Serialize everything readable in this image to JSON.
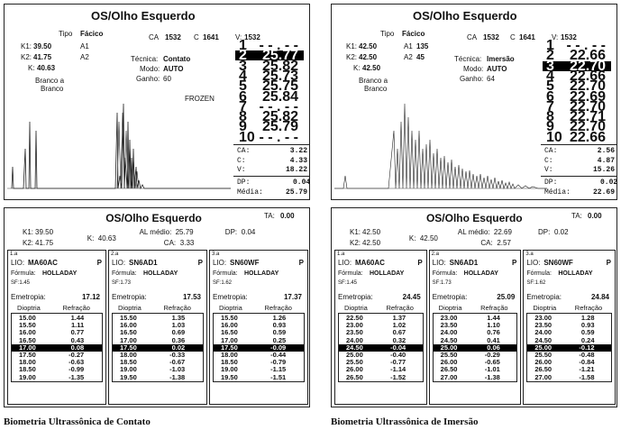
{
  "left": {
    "title": "OS/Olho Esquerdo",
    "tipo_label": "Tipo",
    "tipo": "Fácico",
    "ca_label": "CA",
    "ca": "1532",
    "c_label": "C",
    "c": "1641",
    "v_label": "V:",
    "v": "1532",
    "k1_label": "K1:",
    "k1": "39.50",
    "a1_label": "A1",
    "a1": "",
    "k2_label": "K2:",
    "k2": "41.75",
    "a2_label": "A2",
    "a2": "",
    "k_label": "K:",
    "k": "40.63",
    "tecnica_label": "Técnica:",
    "tecnica": "Contato",
    "modo_label": "Modo:",
    "modo": "AUTO",
    "ganho_label": "Ganho:",
    "ganho": "60",
    "branco1": "Branco a",
    "branco2": "Branco",
    "frozen": "FROZEN",
    "measurements": [
      [
        "1",
        "- - . - -"
      ],
      [
        "2",
        "25.77"
      ],
      [
        "3",
        "25.82"
      ],
      [
        "4",
        "25.73"
      ],
      [
        "5",
        "25.75"
      ],
      [
        "6",
        "25.84"
      ],
      [
        "7",
        "- - . - -"
      ],
      [
        "8",
        "25.82"
      ],
      [
        "9",
        "25.79"
      ],
      [
        "10",
        "- - . - -"
      ]
    ],
    "selected_index": 1,
    "stats": [
      [
        "CA:",
        "3.22"
      ],
      [
        "C:",
        "4.33"
      ],
      [
        "V:",
        "18.22"
      ]
    ],
    "dp_label": "DP:",
    "dp": "0.04",
    "media_label": "Média:",
    "media": "25.79",
    "bottom": {
      "title": "OS/Olho Esquerdo",
      "ta_label": "TA:",
      "ta": "0.00",
      "k1_label": "K1:",
      "k1": "39.50",
      "k_label": "K:",
      "k": "40.63",
      "al_label": "AL médio:",
      "al": "25.79",
      "dp_label": "DP:",
      "dp": "0.04",
      "k2_label": "K2:",
      "k2": "41.75",
      "ca_label": "CA:",
      "ca": "3.33",
      "lenses": [
        {
          "tag": "1.a",
          "lio_label": "LIO:",
          "lio": "MA60AC",
          "p": "P",
          "formula_label": "Fórmula:",
          "formula": "HOLLADAY",
          "sf": "SF:1.45",
          "emetropia_label": "Emetropia:",
          "emetropia": "17.12",
          "col1": "Dioptria",
          "col2": "Refração",
          "rows": [
            [
              "15.00",
              "1.44"
            ],
            [
              "15.50",
              "1.11"
            ],
            [
              "16.00",
              "0.77"
            ],
            [
              "16.50",
              "0.43"
            ],
            [
              "17.00",
              "0.08"
            ],
            [
              "17.50",
              "-0.27"
            ],
            [
              "18.00",
              "-0.63"
            ],
            [
              "18.50",
              "-0.99"
            ],
            [
              "19.00",
              "-1.35"
            ]
          ],
          "sel": 4
        },
        {
          "tag": "2.a",
          "lio_label": "LIO:",
          "lio": "SN6AD1",
          "p": "P",
          "formula_label": "Fórmula:",
          "formula": "HOLLADAY",
          "sf": "SF:1.73",
          "emetropia_label": "Emetropia:",
          "emetropia": "17.53",
          "col1": "Dioptria",
          "col2": "Refração",
          "rows": [
            [
              "15.50",
              "1.35"
            ],
            [
              "16.00",
              "1.03"
            ],
            [
              "16.50",
              "0.69"
            ],
            [
              "17.00",
              "0.36"
            ],
            [
              "17.50",
              "0.02"
            ],
            [
              "18.00",
              "-0.33"
            ],
            [
              "18.50",
              "-0.67"
            ],
            [
              "19.00",
              "-1.03"
            ],
            [
              "19.50",
              "-1.38"
            ]
          ],
          "sel": 4
        },
        {
          "tag": "3.a",
          "lio_label": "LIO:",
          "lio": "SN60WF",
          "p": "P",
          "formula_label": "Fórmula:",
          "formula": "HOLLADAY",
          "sf": "SF:1.62",
          "emetropia_label": "Emetropia:",
          "emetropia": "17.37",
          "col1": "Dioptria",
          "col2": "Refração",
          "rows": [
            [
              "15.50",
              "1.26"
            ],
            [
              "16.00",
              "0.93"
            ],
            [
              "16.50",
              "0.59"
            ],
            [
              "17.00",
              "0.25"
            ],
            [
              "17.50",
              "-0.09"
            ],
            [
              "18.00",
              "-0.44"
            ],
            [
              "18.50",
              "-0.79"
            ],
            [
              "19.00",
              "-1.15"
            ],
            [
              "19.50",
              "-1.51"
            ]
          ],
          "sel": 4
        }
      ]
    },
    "caption": "Biometria Ultrassônica de Contato"
  },
  "right": {
    "title": "OS/Olho Esquerdo",
    "tipo_label": "Tipo",
    "tipo": "Fácico",
    "ca_label": "CA",
    "ca": "1532",
    "c_label": "C",
    "c": "1641",
    "v_label": "V:",
    "v": "1532",
    "k1_label": "K1:",
    "k1": "42.50",
    "a1_label": "A1",
    "a1": "135",
    "k2_label": "K2:",
    "k2": "42.50",
    "a2_label": "A2",
    "a2": "45",
    "k_label": "K:",
    "k": "42.50",
    "tecnica_label": "Técnica:",
    "tecnica": "Imersão",
    "modo_label": "Modo:",
    "modo": "AUTO",
    "ganho_label": "Ganho:",
    "ganho": "64",
    "branco1": "Branco a",
    "branco2": "Branco",
    "measurements": [
      [
        "1",
        "- - . - -"
      ],
      [
        "2",
        "22.66"
      ],
      [
        "3",
        "22.70"
      ],
      [
        "4",
        "22.66"
      ],
      [
        "5",
        "22.70"
      ],
      [
        "6",
        "22.69"
      ],
      [
        "7",
        "22.70"
      ],
      [
        "8",
        "22.71"
      ],
      [
        "9",
        "22.70"
      ],
      [
        "10",
        "22.66"
      ]
    ],
    "selected_index": 2,
    "stats": [
      [
        "CA:",
        "2.56"
      ],
      [
        "C:",
        "4.87"
      ],
      [
        "V:",
        "15.26"
      ]
    ],
    "dp_label": "DP:",
    "dp": "0.02",
    "media_label": "Média:",
    "media": "22.69",
    "bottom": {
      "title": "OS/Olho Esquerdo",
      "ta_label": "TA:",
      "ta": "0.00",
      "k1_label": "K1:",
      "k1": "42.50",
      "k_label": "K:",
      "k": "42.50",
      "al_label": "AL médio:",
      "al": "22.69",
      "dp_label": "DP:",
      "dp": "0.02",
      "k2_label": "K2:",
      "k2": "42.50",
      "ca_label": "CA:",
      "ca": "2.57",
      "lenses": [
        {
          "tag": "1.a",
          "lio_label": "LIO:",
          "lio": "MA60AC",
          "p": "P",
          "formula_label": "Fórmula:",
          "formula": "HOLLADAY",
          "sf": "SF:1.45",
          "emetropia_label": "Emetropia:",
          "emetropia": "24.45",
          "col1": "Dioptria",
          "col2": "Refração",
          "rows": [
            [
              "22.50",
              "1.37"
            ],
            [
              "23.00",
              "1.02"
            ],
            [
              "23.50",
              "0.67"
            ],
            [
              "24.00",
              "0.32"
            ],
            [
              "24.50",
              "-0.04"
            ],
            [
              "25.00",
              "-0.40"
            ],
            [
              "25.50",
              "-0.77"
            ],
            [
              "26.00",
              "-1.14"
            ],
            [
              "26.50",
              "-1.52"
            ]
          ],
          "sel": 4
        },
        {
          "tag": "2.a",
          "lio_label": "LIO:",
          "lio": "SN6AD1",
          "p": "P",
          "formula_label": "Fórmula:",
          "formula": "HOLLADAY",
          "sf": "SF:1.73",
          "emetropia_label": "Emetropia:",
          "emetropia": "25.09",
          "col1": "Dioptria",
          "col2": "Refração",
          "rows": [
            [
              "23.00",
              "1.44"
            ],
            [
              "23.50",
              "1.10"
            ],
            [
              "24.00",
              "0.76"
            ],
            [
              "24.50",
              "0.41"
            ],
            [
              "25.00",
              "0.06"
            ],
            [
              "25.50",
              "-0.29"
            ],
            [
              "26.00",
              "-0.65"
            ],
            [
              "26.50",
              "-1.01"
            ],
            [
              "27.00",
              "-1.38"
            ]
          ],
          "sel": 4
        },
        {
          "tag": "3.a",
          "lio_label": "LIO:",
          "lio": "SN60WF",
          "p": "P",
          "formula_label": "Fórmula:",
          "formula": "HOLLADAY",
          "sf": "SF:1.62",
          "emetropia_label": "Emetropia:",
          "emetropia": "24.84",
          "col1": "Dioptria",
          "col2": "Refração",
          "rows": [
            [
              "23.00",
              "1.28"
            ],
            [
              "23.50",
              "0.93"
            ],
            [
              "24.00",
              "0.59"
            ],
            [
              "24.50",
              "0.24"
            ],
            [
              "25.00",
              "-0.12"
            ],
            [
              "25.50",
              "-0.48"
            ],
            [
              "26.00",
              "-0.84"
            ],
            [
              "26.50",
              "-1.21"
            ],
            [
              "27.00",
              "-1.58"
            ]
          ],
          "sel": 4
        }
      ]
    },
    "caption": "Biometria Ultrassônica de Imersão"
  }
}
